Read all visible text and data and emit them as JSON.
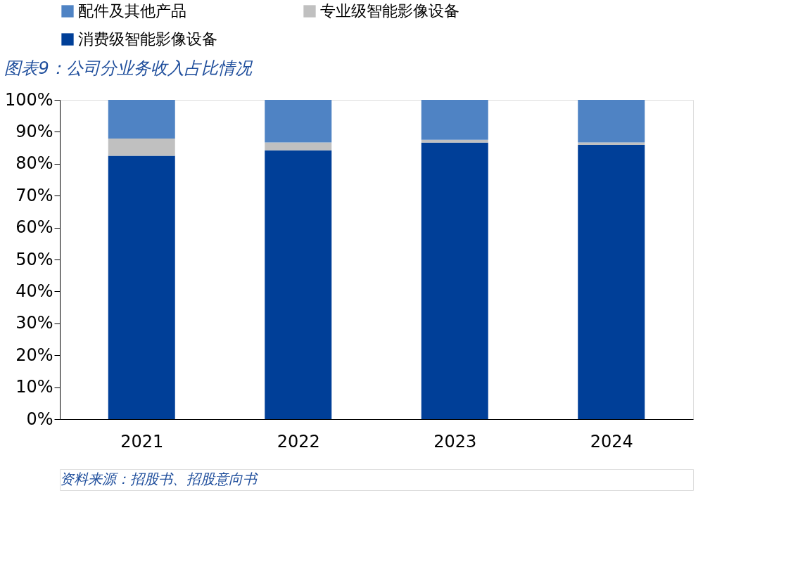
{
  "chart_data": {
    "type": "bar",
    "stacked": true,
    "title": "图表9：公司分业务收入占比情况",
    "categories": [
      "2021",
      "2022",
      "2023",
      "2024"
    ],
    "series": [
      {
        "name": "消费级智能影像设备",
        "color": "#003f98",
        "values": [
          82.5,
          84.2,
          86.6,
          85.9
        ]
      },
      {
        "name": "专业级智能影像设备",
        "color": "#c0c0c0",
        "values": [
          5.4,
          2.5,
          0.9,
          0.8
        ]
      },
      {
        "name": "配件及其他产品",
        "color": "#4f83c4",
        "values": [
          12.1,
          13.3,
          12.5,
          13.3
        ]
      }
    ],
    "ylim": [
      0,
      100
    ],
    "yticks": [
      {
        "value": 0,
        "label": "0%"
      },
      {
        "value": 10,
        "label": "10%"
      },
      {
        "value": 20,
        "label": "20%"
      },
      {
        "value": 30,
        "label": "30%"
      },
      {
        "value": 40,
        "label": "40%"
      },
      {
        "value": 50,
        "label": "50%"
      },
      {
        "value": 60,
        "label": "60%"
      },
      {
        "value": 70,
        "label": "70%"
      },
      {
        "value": 80,
        "label": "80%"
      },
      {
        "value": 90,
        "label": "90%"
      },
      {
        "value": 100,
        "label": "100%"
      }
    ],
    "grid": false,
    "legend": "top left",
    "annotations": [
      "资料来源：招股书、招股意向书"
    ]
  }
}
